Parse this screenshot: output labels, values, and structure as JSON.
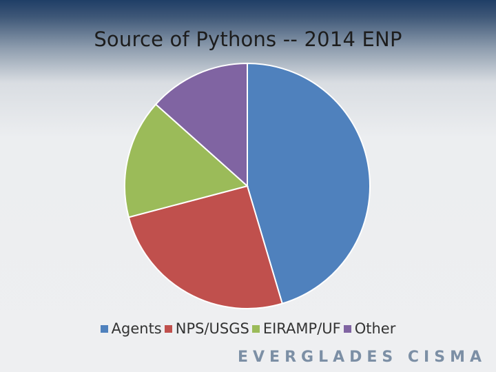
{
  "title": "Source of Pythons -- 2014 ENP",
  "footer": "EVERGLADES CISMA",
  "chart_data": {
    "type": "pie",
    "title": "Source of Pythons -- 2014 ENP",
    "legend_position": "bottom",
    "categories": [
      "Agents",
      "NPS/USGS",
      "EIRAMP/UF",
      "Other"
    ],
    "values": [
      45.4,
      25.5,
      15.7,
      13.4
    ],
    "colors": [
      "#4f81bd",
      "#c0504d",
      "#9bbb59",
      "#8064a2"
    ]
  }
}
